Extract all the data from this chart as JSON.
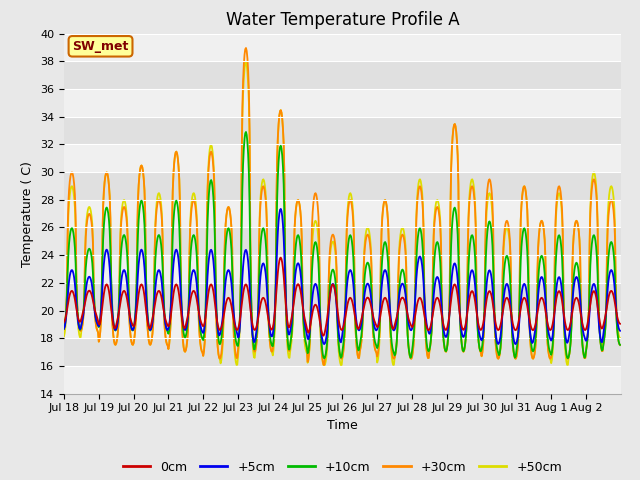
{
  "title": "Water Temperature Profile A",
  "xlabel": "Time",
  "ylabel": "Temperature ( C)",
  "ylim": [
    14,
    40
  ],
  "yticks": [
    14,
    16,
    18,
    20,
    22,
    24,
    26,
    28,
    30,
    32,
    34,
    36,
    38,
    40
  ],
  "xlim_start": 0,
  "xlim_end": 16,
  "xtick_labels": [
    "Jul 18",
    "Jul 19",
    "Jul 20",
    "Jul 21",
    "Jul 22",
    "Jul 23",
    "Jul 24",
    "Jul 25",
    "Jul 26",
    "Jul 27",
    "Jul 28",
    "Jul 29",
    "Jul 30",
    "Jul 31",
    "Aug 1",
    "Aug 2"
  ],
  "legend_labels": [
    "0cm",
    "+5cm",
    "+10cm",
    "+30cm",
    "+50cm"
  ],
  "legend_colors": [
    "#cc0000",
    "#0000ee",
    "#00bb00",
    "#ff8800",
    "#dddd00"
  ],
  "bg_color": "#e8e8e8",
  "plot_bg_color_light": "#f0f0f0",
  "plot_bg_color_dark": "#e0e0e0",
  "annotation_text": "SW_met",
  "annotation_bg": "#ffff99",
  "annotation_border": "#cc6600",
  "annotation_text_color": "#800000",
  "title_fontsize": 12,
  "axis_fontsize": 9,
  "tick_fontsize": 8,
  "legend_fontsize": 9
}
